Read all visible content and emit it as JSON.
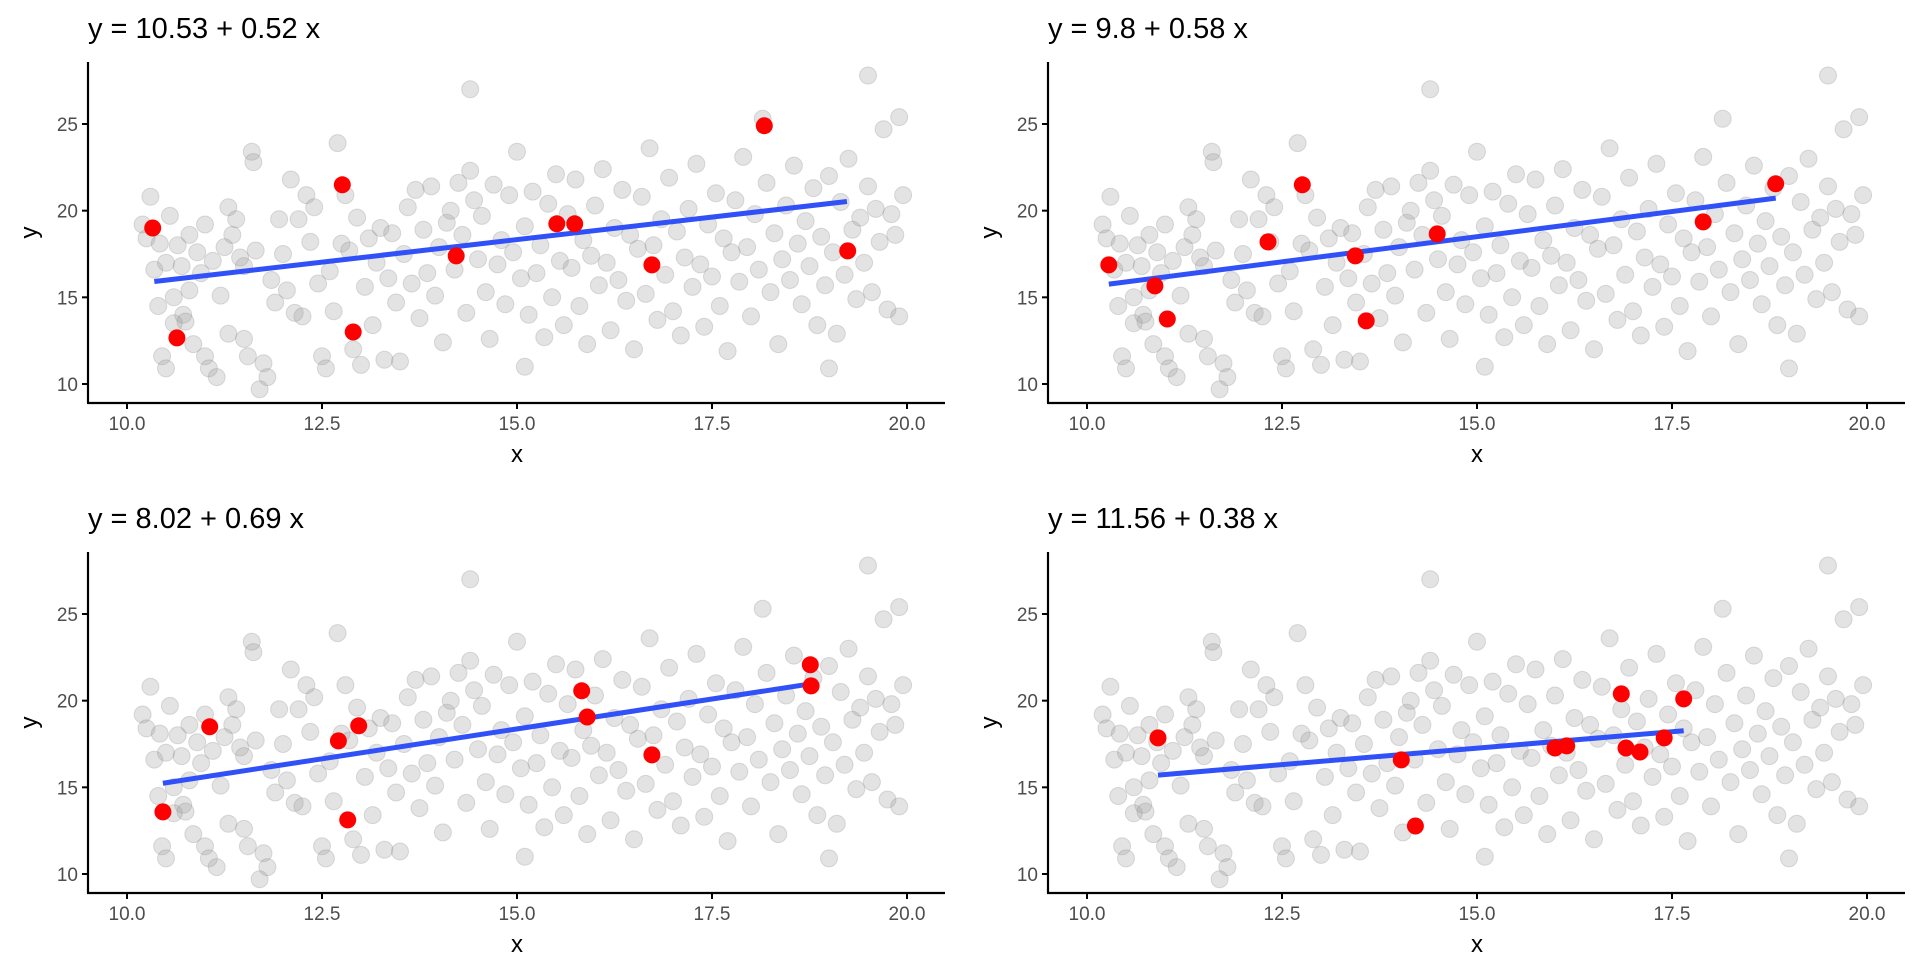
{
  "chart_data": {
    "type": "scatter",
    "colors": {
      "background_points": "#999999",
      "highlight_points": "#ff0000",
      "fit_line": "#3050f8",
      "axis": "#000000",
      "tick_text": "#4d4d4d"
    },
    "shared_axes": {
      "xlabel": "x",
      "ylabel": "y",
      "xlim": [
        9.6,
        20.5
      ],
      "ylim": [
        8.9,
        28.5
      ],
      "xticks": [
        10.0,
        12.5,
        15.0,
        17.5,
        20.0
      ],
      "xtick_labels": [
        "10.0",
        "12.5",
        "15.0",
        "17.5",
        "20.0"
      ],
      "yticks": [
        10,
        15,
        20,
        25
      ],
      "ytick_labels": [
        "10",
        "15",
        "20",
        "25"
      ],
      "grid": false
    },
    "background_points": [
      [
        10.2,
        19.2
      ],
      [
        10.25,
        18.4
      ],
      [
        10.3,
        20.8
      ],
      [
        10.35,
        16.6
      ],
      [
        10.4,
        14.5
      ],
      [
        10.42,
        18.1
      ],
      [
        10.45,
        11.6
      ],
      [
        10.5,
        10.9
      ],
      [
        10.5,
        17.0
      ],
      [
        10.55,
        19.7
      ],
      [
        10.6,
        15.0
      ],
      [
        10.6,
        13.5
      ],
      [
        10.65,
        18.0
      ],
      [
        10.7,
        16.8
      ],
      [
        10.72,
        14.0
      ],
      [
        10.75,
        13.6
      ],
      [
        10.8,
        15.4
      ],
      [
        10.8,
        18.6
      ],
      [
        10.85,
        12.3
      ],
      [
        10.9,
        17.6
      ],
      [
        10.95,
        16.4
      ],
      [
        11.0,
        11.6
      ],
      [
        11.0,
        19.2
      ],
      [
        11.05,
        10.9
      ],
      [
        11.1,
        17.1
      ],
      [
        11.15,
        10.4
      ],
      [
        11.2,
        15.1
      ],
      [
        11.25,
        17.9
      ],
      [
        11.3,
        12.9
      ],
      [
        11.3,
        20.2
      ],
      [
        11.35,
        18.6
      ],
      [
        11.4,
        19.5
      ],
      [
        11.45,
        17.3
      ],
      [
        11.5,
        12.6
      ],
      [
        11.5,
        16.8
      ],
      [
        11.55,
        11.6
      ],
      [
        11.6,
        23.4
      ],
      [
        11.62,
        22.8
      ],
      [
        11.65,
        17.7
      ],
      [
        11.7,
        9.7
      ],
      [
        11.75,
        11.2
      ],
      [
        11.8,
        10.4
      ],
      [
        11.85,
        16.0
      ],
      [
        11.9,
        14.7
      ],
      [
        11.95,
        19.5
      ],
      [
        12.0,
        17.5
      ],
      [
        12.05,
        15.4
      ],
      [
        12.1,
        21.8
      ],
      [
        12.15,
        14.1
      ],
      [
        12.2,
        19.5
      ],
      [
        12.25,
        13.9
      ],
      [
        12.3,
        20.9
      ],
      [
        12.35,
        18.2
      ],
      [
        12.4,
        20.2
      ],
      [
        12.45,
        15.8
      ],
      [
        12.5,
        11.6
      ],
      [
        12.55,
        10.9
      ],
      [
        12.6,
        16.5
      ],
      [
        12.65,
        14.2
      ],
      [
        12.7,
        23.9
      ],
      [
        12.75,
        18.1
      ],
      [
        12.8,
        20.9
      ],
      [
        12.85,
        17.7
      ],
      [
        12.9,
        12.0
      ],
      [
        12.95,
        19.6
      ],
      [
        13.0,
        11.1
      ],
      [
        13.05,
        15.6
      ],
      [
        13.1,
        18.4
      ],
      [
        13.15,
        13.4
      ],
      [
        13.2,
        17.0
      ],
      [
        13.25,
        19.0
      ],
      [
        13.3,
        11.4
      ],
      [
        13.35,
        16.1
      ],
      [
        13.4,
        18.7
      ],
      [
        13.45,
        14.7
      ],
      [
        13.5,
        11.3
      ],
      [
        13.55,
        17.5
      ],
      [
        13.6,
        20.2
      ],
      [
        13.65,
        15.8
      ],
      [
        13.7,
        21.2
      ],
      [
        13.75,
        13.8
      ],
      [
        13.8,
        18.9
      ],
      [
        13.85,
        16.4
      ],
      [
        13.9,
        21.4
      ],
      [
        13.95,
        15.1
      ],
      [
        14.0,
        17.9
      ],
      [
        14.05,
        12.4
      ],
      [
        14.1,
        19.3
      ],
      [
        14.15,
        20.0
      ],
      [
        14.2,
        16.6
      ],
      [
        14.25,
        21.6
      ],
      [
        14.3,
        18.6
      ],
      [
        14.35,
        14.1
      ],
      [
        14.4,
        27.0
      ],
      [
        14.4,
        22.3
      ],
      [
        14.45,
        20.6
      ],
      [
        14.5,
        17.2
      ],
      [
        14.55,
        19.7
      ],
      [
        14.6,
        15.3
      ],
      [
        14.65,
        12.6
      ],
      [
        14.7,
        21.5
      ],
      [
        14.75,
        16.9
      ],
      [
        14.8,
        18.3
      ],
      [
        14.85,
        14.6
      ],
      [
        14.9,
        20.9
      ],
      [
        14.95,
        17.6
      ],
      [
        15.0,
        23.4
      ],
      [
        15.05,
        16.1
      ],
      [
        15.1,
        11.0
      ],
      [
        15.1,
        19.1
      ],
      [
        15.15,
        14.0
      ],
      [
        15.2,
        21.1
      ],
      [
        15.25,
        16.4
      ],
      [
        15.3,
        18.0
      ],
      [
        15.35,
        12.7
      ],
      [
        15.4,
        20.4
      ],
      [
        15.45,
        15.0
      ],
      [
        15.5,
        22.1
      ],
      [
        15.55,
        17.1
      ],
      [
        15.6,
        13.4
      ],
      [
        15.65,
        19.8
      ],
      [
        15.7,
        16.7
      ],
      [
        15.75,
        21.8
      ],
      [
        15.8,
        14.5
      ],
      [
        15.85,
        18.3
      ],
      [
        15.9,
        12.3
      ],
      [
        15.95,
        17.4
      ],
      [
        16.0,
        20.3
      ],
      [
        16.05,
        15.7
      ],
      [
        16.1,
        22.4
      ],
      [
        16.15,
        17.0
      ],
      [
        16.2,
        13.1
      ],
      [
        16.25,
        19.0
      ],
      [
        16.3,
        16.0
      ],
      [
        16.35,
        21.2
      ],
      [
        16.4,
        14.8
      ],
      [
        16.45,
        18.6
      ],
      [
        16.5,
        12.0
      ],
      [
        16.55,
        17.8
      ],
      [
        16.6,
        20.8
      ],
      [
        16.65,
        15.2
      ],
      [
        16.7,
        23.6
      ],
      [
        16.75,
        18.0
      ],
      [
        16.8,
        13.7
      ],
      [
        16.85,
        19.5
      ],
      [
        16.9,
        16.3
      ],
      [
        16.95,
        21.9
      ],
      [
        17.0,
        14.2
      ],
      [
        17.05,
        18.8
      ],
      [
        17.1,
        12.8
      ],
      [
        17.15,
        17.3
      ],
      [
        17.2,
        20.1
      ],
      [
        17.25,
        15.6
      ],
      [
        17.3,
        22.7
      ],
      [
        17.35,
        16.9
      ],
      [
        17.4,
        13.3
      ],
      [
        17.45,
        19.2
      ],
      [
        17.5,
        16.2
      ],
      [
        17.55,
        21.0
      ],
      [
        17.6,
        14.5
      ],
      [
        17.65,
        18.4
      ],
      [
        17.7,
        11.9
      ],
      [
        17.75,
        17.6
      ],
      [
        17.8,
        20.6
      ],
      [
        17.85,
        15.9
      ],
      [
        17.9,
        23.1
      ],
      [
        17.95,
        17.9
      ],
      [
        18.0,
        13.9
      ],
      [
        18.05,
        19.8
      ],
      [
        18.1,
        16.6
      ],
      [
        18.15,
        25.3
      ],
      [
        18.2,
        21.6
      ],
      [
        18.25,
        15.3
      ],
      [
        18.3,
        18.7
      ],
      [
        18.35,
        12.3
      ],
      [
        18.4,
        17.2
      ],
      [
        18.45,
        20.3
      ],
      [
        18.5,
        16.0
      ],
      [
        18.55,
        22.6
      ],
      [
        18.6,
        18.1
      ],
      [
        18.65,
        14.6
      ],
      [
        18.7,
        19.4
      ],
      [
        18.75,
        16.8
      ],
      [
        18.8,
        21.3
      ],
      [
        18.85,
        13.4
      ],
      [
        18.9,
        18.5
      ],
      [
        18.95,
        15.7
      ],
      [
        19.0,
        22.0
      ],
      [
        19.0,
        10.9
      ],
      [
        19.05,
        17.6
      ],
      [
        19.1,
        12.9
      ],
      [
        19.15,
        20.5
      ],
      [
        19.2,
        16.3
      ],
      [
        19.25,
        23.0
      ],
      [
        19.3,
        18.9
      ],
      [
        19.35,
        14.9
      ],
      [
        19.4,
        19.6
      ],
      [
        19.45,
        17.0
      ],
      [
        19.5,
        27.8
      ],
      [
        19.5,
        21.4
      ],
      [
        19.55,
        15.3
      ],
      [
        19.6,
        20.1
      ],
      [
        19.65,
        18.2
      ],
      [
        19.7,
        24.7
      ],
      [
        19.75,
        14.3
      ],
      [
        19.8,
        19.8
      ],
      [
        19.85,
        18.6
      ],
      [
        19.9,
        25.4
      ],
      [
        19.9,
        13.9
      ],
      [
        19.95,
        20.9
      ]
    ],
    "panels": [
      {
        "title": "y =  10.53  +  0.52 x",
        "intercept": 10.53,
        "slope": 0.52,
        "fit_range": [
          10.35,
          19.23
        ],
        "highlight_points": [
          [
            10.33,
            19.0
          ],
          [
            10.64,
            12.66
          ],
          [
            12.76,
            21.49
          ],
          [
            12.9,
            13.0
          ],
          [
            14.22,
            17.39
          ],
          [
            15.51,
            19.24
          ],
          [
            15.74,
            19.24
          ],
          [
            16.73,
            16.87
          ],
          [
            18.17,
            24.9
          ],
          [
            19.24,
            17.68
          ]
        ]
      },
      {
        "title": "y =  9.8  +  0.58 x",
        "intercept": 9.8,
        "slope": 0.58,
        "fit_range": [
          10.28,
          18.83
        ],
        "highlight_points": [
          [
            10.28,
            16.87
          ],
          [
            10.87,
            15.66
          ],
          [
            11.03,
            13.75
          ],
          [
            12.32,
            18.2
          ],
          [
            12.76,
            21.49
          ],
          [
            13.44,
            17.39
          ],
          [
            13.58,
            13.64
          ],
          [
            14.49,
            18.66
          ],
          [
            17.9,
            19.35
          ],
          [
            18.83,
            21.55
          ]
        ]
      },
      {
        "title": "y =  8.02  +  0.69 x",
        "intercept": 8.02,
        "slope": 0.69,
        "fit_range": [
          10.46,
          18.77
        ],
        "highlight_points": [
          [
            10.46,
            13.58
          ],
          [
            11.06,
            18.49
          ],
          [
            12.71,
            17.68
          ],
          [
            12.97,
            18.55
          ],
          [
            12.83,
            13.12
          ],
          [
            15.83,
            20.57
          ],
          [
            15.9,
            19.06
          ],
          [
            16.73,
            16.87
          ],
          [
            18.76,
            22.07
          ],
          [
            18.77,
            20.85
          ]
        ]
      },
      {
        "title": "y =  11.56  +  0.38 x",
        "intercept": 11.56,
        "slope": 0.38,
        "fit_range": [
          10.91,
          17.65
        ],
        "highlight_points": [
          [
            10.91,
            17.85
          ],
          [
            14.03,
            16.58
          ],
          [
            14.21,
            12.77
          ],
          [
            16.0,
            17.27
          ],
          [
            16.15,
            17.39
          ],
          [
            16.85,
            20.39
          ],
          [
            16.91,
            17.27
          ],
          [
            17.09,
            17.04
          ],
          [
            17.4,
            17.85
          ],
          [
            17.65,
            20.1
          ]
        ]
      }
    ]
  }
}
